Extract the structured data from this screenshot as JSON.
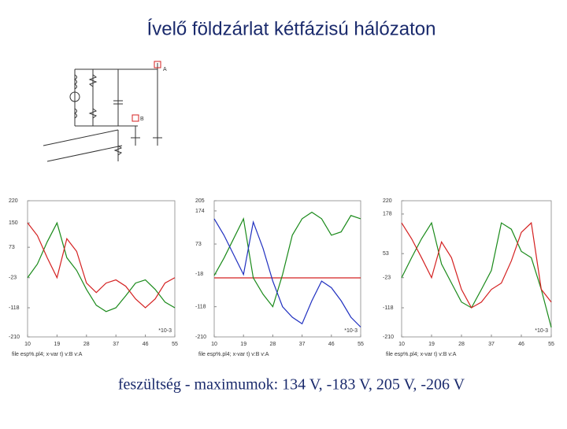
{
  "title": "Ívelő földzárlat kétfázisú hálózaton",
  "diagram": {
    "labels": [
      "A",
      "B"
    ]
  },
  "caption": "feszültség - maximumok: 134 V, -183 V, 205 V, -206 V",
  "chart_data": [
    {
      "type": "line",
      "footer": "file esp%.pl4; x-var t) v:B  v:A",
      "x_unit": "*10-3",
      "x": [
        10,
        13,
        16,
        19,
        22,
        25,
        28,
        31,
        34,
        37,
        40,
        43,
        46,
        49,
        52,
        55
      ],
      "xlim": [
        10,
        55
      ],
      "xticks": [
        10,
        19,
        28,
        37,
        46,
        55
      ],
      "ylim": [
        -210,
        220
      ],
      "yticks": [
        220,
        150,
        73,
        -23,
        -118,
        -210
      ],
      "series": [
        {
          "color": "#1a8a1a",
          "values": [
            -23,
            20,
            90,
            150,
            40,
            0,
            -60,
            -110,
            -130,
            -118,
            -80,
            -40,
            -30,
            -60,
            -100,
            -118
          ]
        },
        {
          "color": "#d42020",
          "values": [
            150,
            110,
            40,
            -23,
            100,
            60,
            -40,
            -70,
            -40,
            -30,
            -50,
            -90,
            -118,
            -90,
            -40,
            -23
          ]
        }
      ]
    },
    {
      "type": "line",
      "footer": "file esp%.pl4; x-var t) v:B  v:A",
      "x_unit": "*10-3",
      "x": [
        10,
        13,
        16,
        19,
        22,
        25,
        28,
        31,
        34,
        37,
        40,
        43,
        46,
        49,
        52,
        55
      ],
      "xlim": [
        10,
        55
      ],
      "xticks": [
        10,
        19,
        28,
        37,
        46,
        55
      ],
      "ylim": [
        -210,
        205
      ],
      "yticks": [
        205,
        174,
        73,
        -18,
        -118,
        -210
      ],
      "series": [
        {
          "color": "#d42020",
          "values": [
            -30,
            -30,
            -30,
            -30,
            -30,
            -30,
            -30,
            -30,
            -30,
            -30,
            -30,
            -30,
            -30,
            -30,
            -30,
            -30
          ]
        },
        {
          "color": "#1a8a1a",
          "values": [
            -23,
            30,
            90,
            150,
            -30,
            -80,
            -118,
            -20,
            100,
            150,
            170,
            150,
            100,
            110,
            160,
            150
          ]
        },
        {
          "color": "#2030c0",
          "values": [
            150,
            100,
            40,
            -20,
            140,
            60,
            -40,
            -118,
            -150,
            -170,
            -100,
            -40,
            -60,
            -100,
            -150,
            -180
          ]
        }
      ]
    },
    {
      "type": "line",
      "footer": "file esp%.pl4; x-var t) v:B  v:A",
      "x_unit": "*10-3",
      "x": [
        10,
        13,
        16,
        19,
        22,
        25,
        28,
        31,
        34,
        37,
        40,
        43,
        46,
        49,
        52,
        55
      ],
      "xlim": [
        10,
        55
      ],
      "xticks": [
        10,
        19,
        28,
        37,
        46,
        55
      ],
      "ylim": [
        -210,
        220
      ],
      "yticks": [
        220,
        178,
        53,
        -23,
        -118,
        -210
      ],
      "series": [
        {
          "color": "#1a8a1a",
          "values": [
            -23,
            40,
            100,
            150,
            20,
            -40,
            -100,
            -118,
            -60,
            0,
            150,
            130,
            60,
            40,
            -60,
            -180
          ]
        },
        {
          "color": "#d42020",
          "values": [
            150,
            100,
            40,
            -23,
            90,
            40,
            -60,
            -118,
            -100,
            -60,
            -40,
            30,
            120,
            150,
            -60,
            -100
          ]
        }
      ]
    }
  ]
}
